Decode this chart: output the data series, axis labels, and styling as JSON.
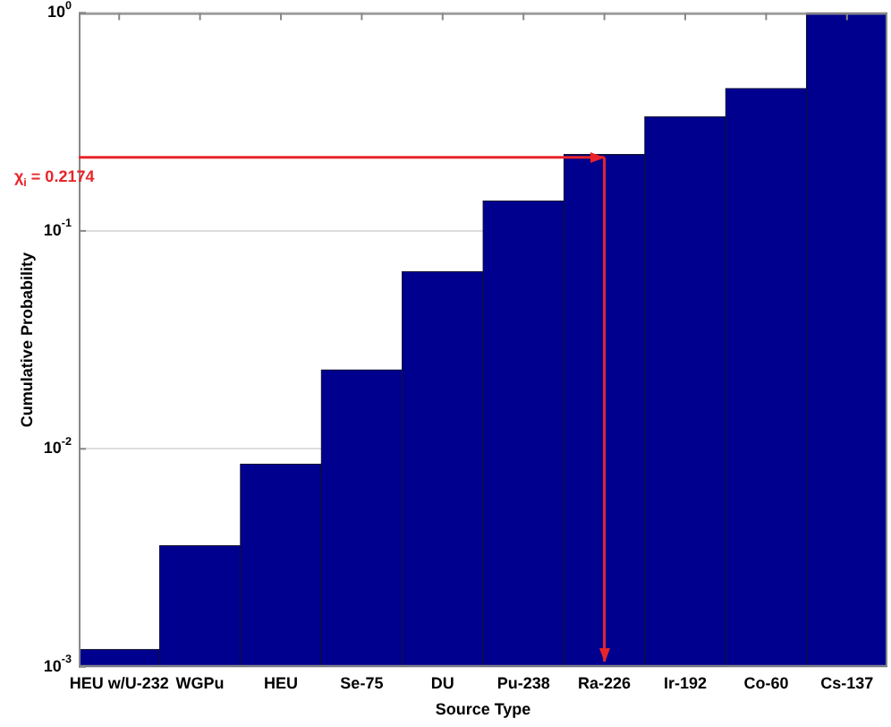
{
  "chart_data": {
    "type": "bar",
    "xlabel": "Source Type",
    "ylabel": "Cumulative Probability",
    "categories": [
      "HEU w/U-232",
      "WGPu",
      "HEU",
      "Se-75",
      "DU",
      "Pu-238",
      "Ra-226",
      "Ir-192",
      "Co-60",
      "Cs-137"
    ],
    "values": [
      0.0012,
      0.0036,
      0.0085,
      0.023,
      0.065,
      0.137,
      0.224,
      0.334,
      0.45,
      1.0
    ],
    "color": "#00008f",
    "log": true,
    "grid": "y",
    "legend": false,
    "ylim": [
      0.001,
      1
    ],
    "yticks": [
      {
        "value": 0.001,
        "label": "10$^{-3}$"
      },
      {
        "value": 0.01,
        "label": "10$^{-2}$"
      },
      {
        "value": 0.1,
        "label": "10$^{-1}$"
      },
      {
        "value": 1,
        "label": "10$^{0}$"
      }
    ],
    "ref_lines": [
      {
        "axis": "y",
        "value": 0.2174,
        "label": "χ$_{i}$ = 0.2174",
        "color": "#e8242a"
      },
      {
        "axis": "x",
        "value": "Ra-226",
        "color": "#e8242a"
      }
    ]
  }
}
